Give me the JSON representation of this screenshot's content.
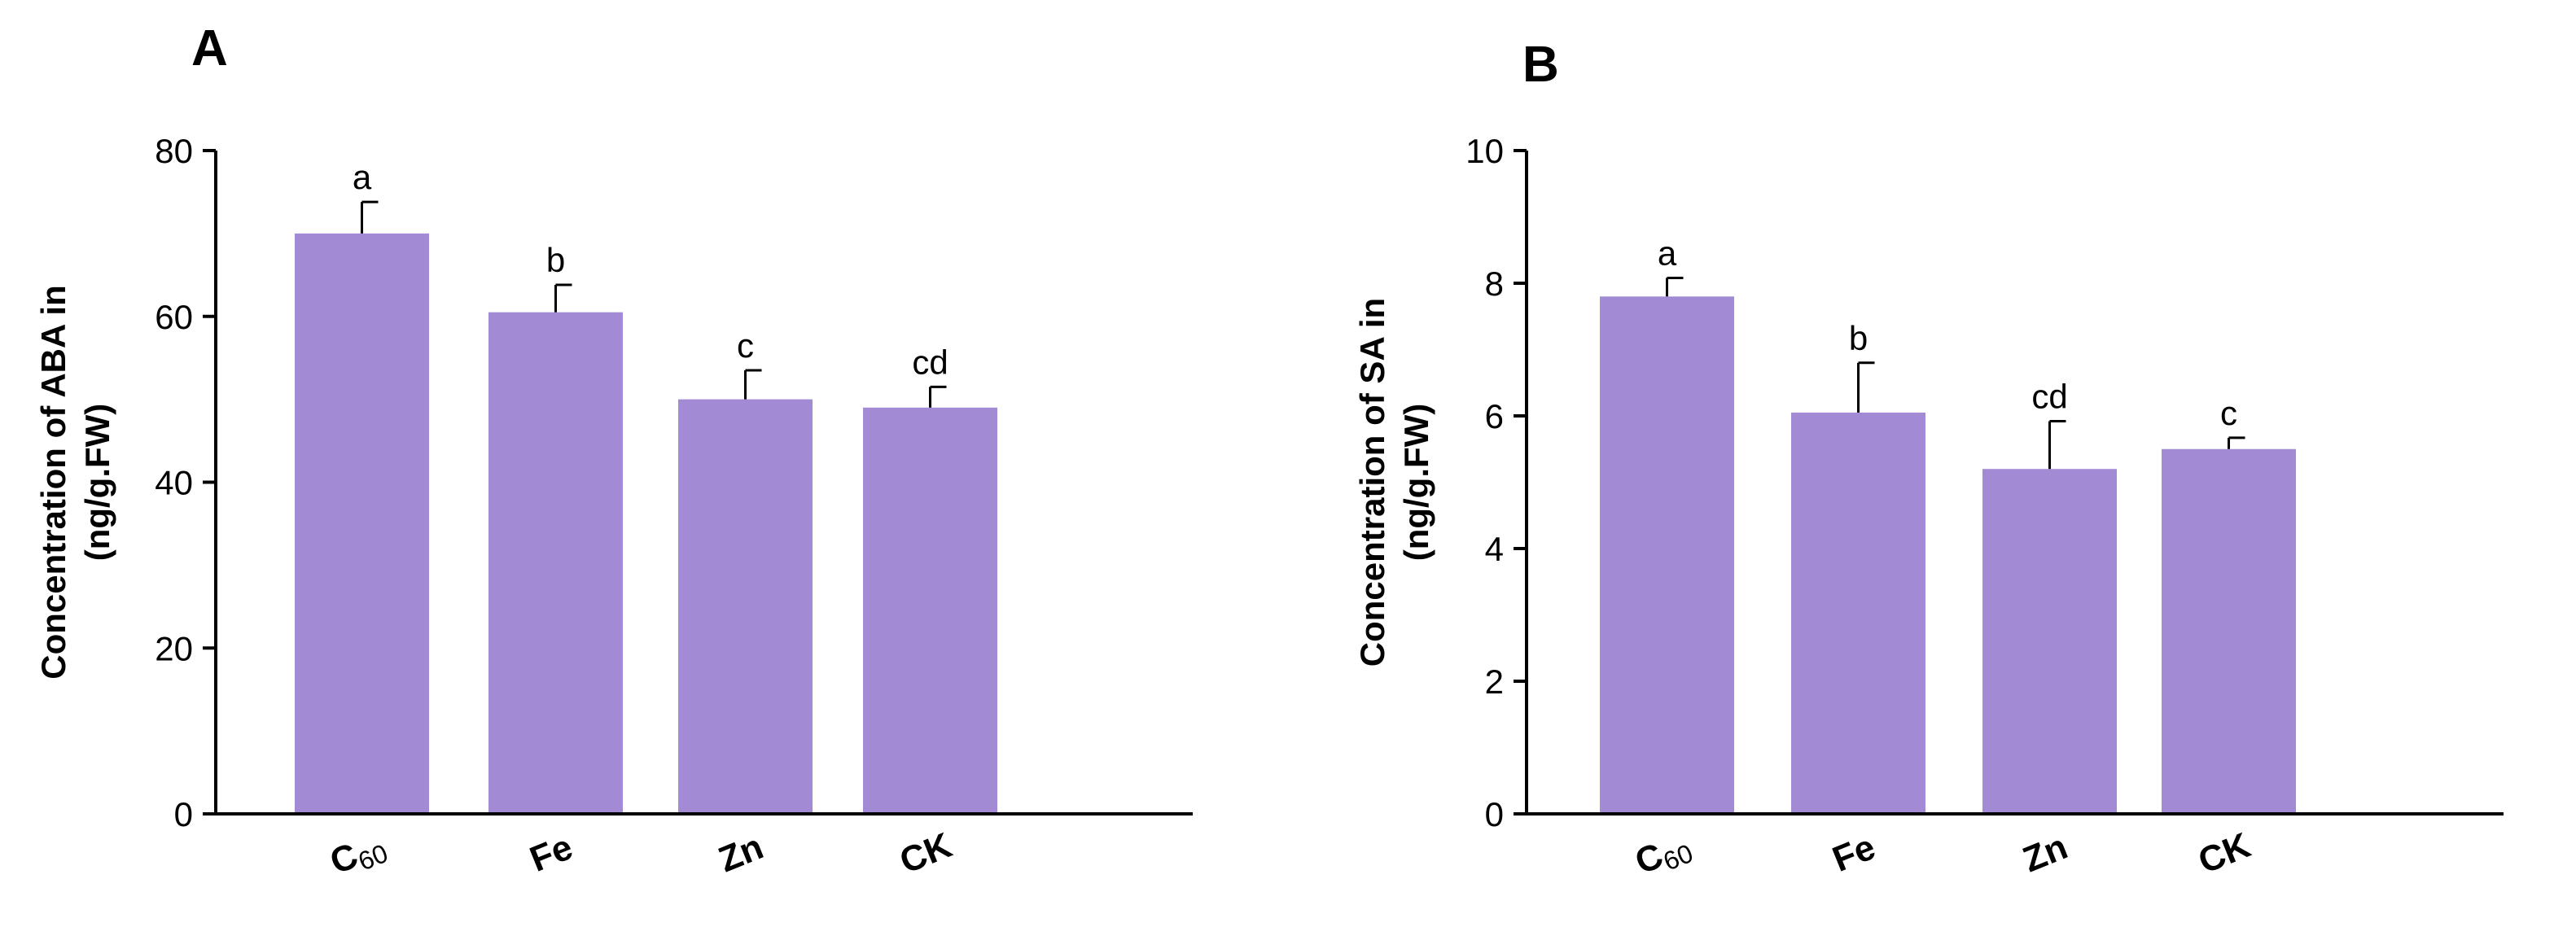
{
  "chart_data": [
    {
      "type": "bar",
      "panel": "A",
      "ylabel_line1": "Concentration of ABA in",
      "ylabel_line2": "(ng/g.FW)",
      "xlabel": "",
      "categories": [
        "C60",
        "Fe",
        "Zn",
        "CK"
      ],
      "values": [
        70,
        60.5,
        50,
        49
      ],
      "errors": [
        3.8,
        3.3,
        3.5,
        2.5
      ],
      "significance": [
        "a",
        "b",
        "c",
        "cd"
      ],
      "ylim": [
        0,
        80
      ],
      "yticks": [
        0,
        20,
        40,
        60,
        80
      ],
      "bar_color": "#a28bd4",
      "grid": false
    },
    {
      "type": "bar",
      "panel": "B",
      "ylabel_line1": "Concentration of SA in",
      "ylabel_line2": "(ng/g.FW)",
      "xlabel": "",
      "categories": [
        "C60",
        "Fe",
        "Zn",
        "CK"
      ],
      "values": [
        7.8,
        6.05,
        5.2,
        5.5
      ],
      "errors": [
        0.28,
        0.75,
        0.72,
        0.17
      ],
      "significance": [
        "a",
        "b",
        "cd",
        "c"
      ],
      "ylim": [
        0,
        10
      ],
      "yticks": [
        0,
        2,
        4,
        6,
        8,
        10
      ],
      "bar_color": "#a28bd4",
      "grid": false
    }
  ]
}
